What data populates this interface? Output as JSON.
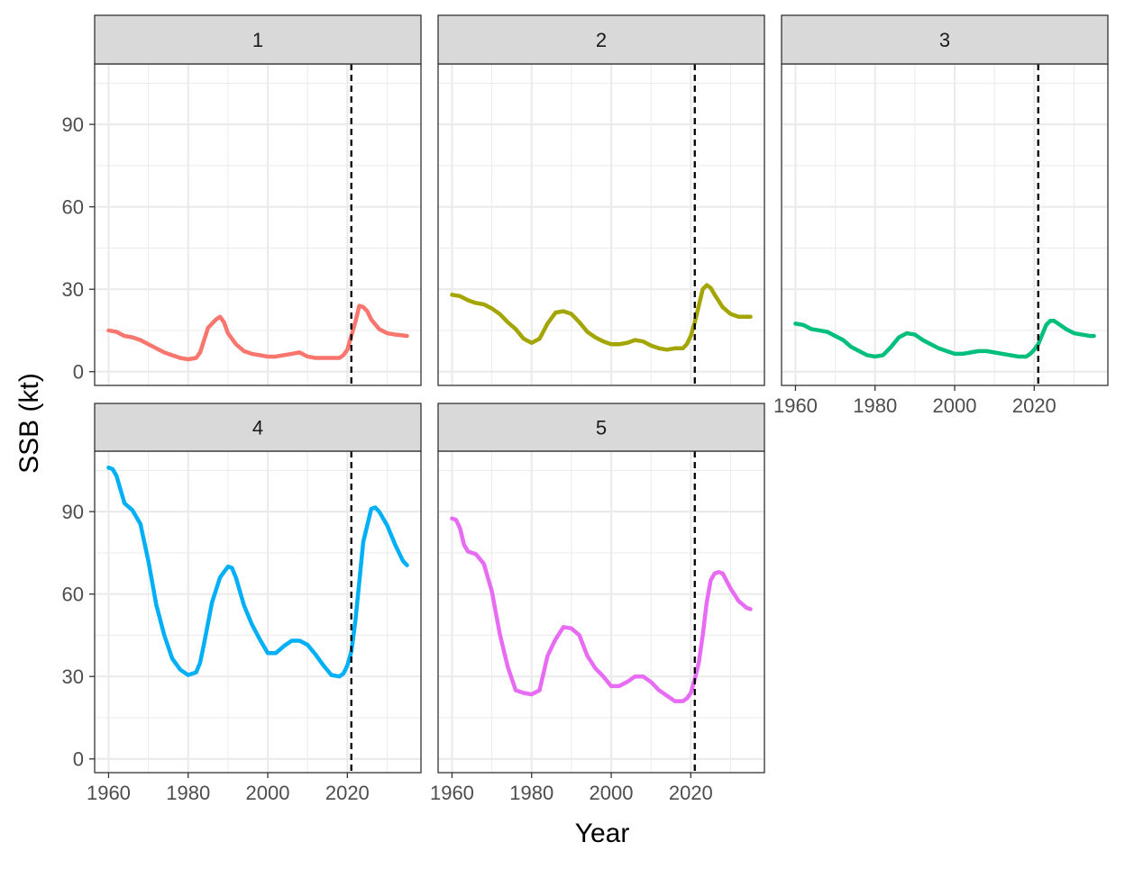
{
  "chart_data": {
    "type": "line",
    "xlabel": "Year",
    "ylabel": "SSB (kt)",
    "xlim": [
      1956.5,
      2038.5
    ],
    "ylim": [
      -5,
      112
    ],
    "xticks": [
      1960,
      1980,
      2000,
      2020
    ],
    "yticks": [
      0,
      30,
      60,
      90
    ],
    "vline_x": 2021,
    "grid": true,
    "legend": "none",
    "panels": [
      {
        "label": "1",
        "color": "#F8766D",
        "series": {
          "x": [
            1960,
            1962,
            1964,
            1966,
            1968,
            1970,
            1972,
            1974,
            1976,
            1978,
            1980,
            1982,
            1983,
            1985,
            1987,
            1988,
            1989,
            1990,
            1992,
            1994,
            1996,
            1998,
            2000,
            2002,
            2004,
            2006,
            2008,
            2010,
            2012,
            2014,
            2016,
            2018,
            2019,
            2020,
            2021,
            2022,
            2023,
            2024,
            2025,
            2026,
            2028,
            2030,
            2032,
            2034,
            2035
          ],
          "y": [
            15,
            14.5,
            13,
            12.5,
            11.5,
            10,
            8.5,
            7,
            6,
            5,
            4.5,
            5,
            7,
            16,
            19,
            20,
            18,
            14,
            10,
            7.5,
            6.5,
            6,
            5.5,
            5.5,
            6,
            6.5,
            7,
            5.5,
            5,
            5,
            5,
            5,
            6,
            8,
            13,
            18,
            24,
            23.5,
            22,
            19,
            15.5,
            14,
            13.5,
            13.2,
            13
          ]
        }
      },
      {
        "label": "2",
        "color": "#A3A500",
        "series": {
          "x": [
            1960,
            1962,
            1964,
            1966,
            1968,
            1970,
            1972,
            1974,
            1976,
            1978,
            1980,
            1982,
            1984,
            1986,
            1988,
            1990,
            1992,
            1994,
            1996,
            1998,
            2000,
            2002,
            2004,
            2006,
            2008,
            2010,
            2012,
            2014,
            2016,
            2018,
            2019,
            2020,
            2021,
            2022,
            2023,
            2024,
            2025,
            2026,
            2028,
            2030,
            2032,
            2034,
            2035
          ],
          "y": [
            28,
            27.5,
            26,
            25,
            24.5,
            23,
            21,
            18,
            15.5,
            12,
            10.5,
            12,
            17.5,
            21.5,
            22,
            21,
            18,
            14.5,
            12.5,
            11,
            10,
            10,
            10.5,
            11.5,
            11,
            9.5,
            8.5,
            8,
            8.5,
            8.5,
            10,
            13,
            18,
            24,
            30,
            31.5,
            30.5,
            28,
            23.5,
            21,
            20,
            20,
            20
          ]
        }
      },
      {
        "label": "3",
        "color": "#00BF7D",
        "series": {
          "x": [
            1960,
            1962,
            1964,
            1966,
            1968,
            1970,
            1972,
            1974,
            1976,
            1978,
            1980,
            1982,
            1984,
            1986,
            1988,
            1990,
            1992,
            1994,
            1996,
            1998,
            2000,
            2002,
            2004,
            2006,
            2008,
            2010,
            2012,
            2014,
            2016,
            2018,
            2019,
            2020,
            2021,
            2022,
            2023,
            2024,
            2025,
            2026,
            2028,
            2030,
            2032,
            2034,
            2035
          ],
          "y": [
            17.5,
            17,
            15.5,
            15,
            14.5,
            13,
            11.5,
            9,
            7.5,
            6,
            5.5,
            6,
            9,
            12.5,
            14,
            13.5,
            11.5,
            10,
            8.5,
            7.5,
            6.5,
            6.5,
            7,
            7.5,
            7.5,
            7,
            6.5,
            6,
            5.5,
            5.5,
            6.5,
            8,
            10,
            13.5,
            17,
            18.5,
            18.5,
            17.5,
            15.5,
            14,
            13.5,
            13,
            13
          ]
        }
      },
      {
        "label": "4",
        "color": "#00B0F6",
        "series": {
          "x": [
            1960,
            1961,
            1962,
            1964,
            1966,
            1968,
            1970,
            1972,
            1974,
            1976,
            1978,
            1980,
            1982,
            1983,
            1984,
            1986,
            1988,
            1990,
            1991,
            1992,
            1994,
            1996,
            1998,
            2000,
            2002,
            2004,
            2006,
            2008,
            2010,
            2012,
            2014,
            2016,
            2018,
            2019,
            2020,
            2021,
            2022,
            2024,
            2026,
            2027,
            2028,
            2030,
            2032,
            2034,
            2035
          ],
          "y": [
            106,
            105.5,
            103,
            93,
            90.5,
            85.5,
            72,
            56,
            45,
            36.5,
            32.5,
            30.5,
            31.5,
            35,
            42,
            57,
            66,
            70,
            69.5,
            66,
            56,
            49,
            43.5,
            38.5,
            38.5,
            41,
            43,
            43,
            41.5,
            38,
            34,
            30.5,
            30,
            31,
            34,
            39,
            50,
            79,
            91,
            91.5,
            90,
            85,
            78,
            72,
            70.5
          ]
        }
      },
      {
        "label": "5",
        "color": "#E76BF3",
        "series": {
          "x": [
            1960,
            1961,
            1962,
            1963,
            1964,
            1966,
            1968,
            1970,
            1972,
            1974,
            1976,
            1978,
            1980,
            1982,
            1984,
            1986,
            1988,
            1990,
            1992,
            1994,
            1996,
            1998,
            2000,
            2002,
            2004,
            2006,
            2008,
            2010,
            2012,
            2014,
            2016,
            2018,
            2019,
            2020,
            2021,
            2022,
            2023,
            2024,
            2025,
            2026,
            2027,
            2028,
            2030,
            2032,
            2034,
            2035
          ],
          "y": [
            87.5,
            87,
            84,
            78,
            75.5,
            74.5,
            71,
            61,
            45.5,
            33.5,
            25,
            24,
            23.5,
            25,
            37.5,
            43.5,
            48,
            47.5,
            45,
            37.5,
            33,
            30,
            26.5,
            26.5,
            28,
            30,
            30,
            28,
            25,
            23,
            21,
            21,
            22,
            24,
            29,
            35,
            45,
            57,
            65,
            67.5,
            68,
            67.5,
            62,
            57.5,
            55,
            54.5
          ]
        }
      }
    ]
  }
}
